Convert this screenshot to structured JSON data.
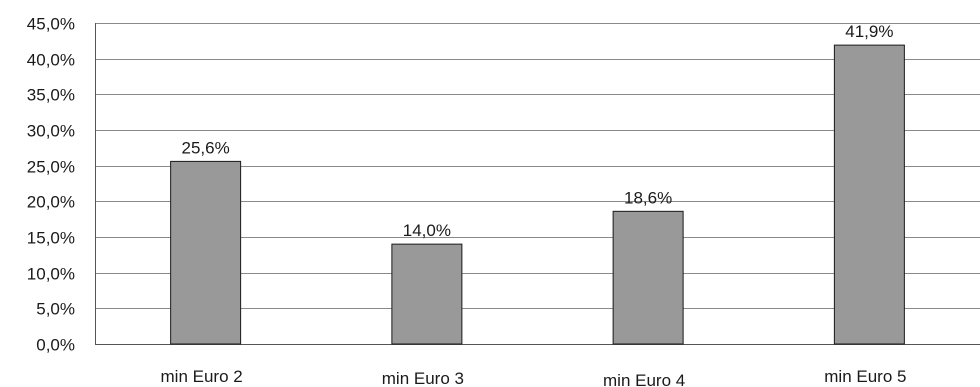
{
  "chart_data": {
    "type": "bar",
    "title": "",
    "xlabel": "",
    "ylabel": "",
    "categories": [
      "min Euro 2",
      "min Euro 3",
      "min Euro 4",
      "min Euro 5"
    ],
    "values": [
      25.6,
      14.0,
      18.6,
      41.9
    ],
    "value_labels": [
      "25,6%",
      "14,0%",
      "18,6%",
      "41,9%"
    ],
    "ylim": [
      0,
      45
    ],
    "y_ticks": [
      0,
      5,
      10,
      15,
      20,
      25,
      30,
      35,
      40,
      45
    ],
    "y_tick_labels": [
      "0,0%",
      "5,0%",
      "10,0%",
      "15,0%",
      "20,0%",
      "25,0%",
      "30,0%",
      "35,0%",
      "40,0%",
      "45,0%"
    ],
    "grid": true,
    "legend": "none",
    "colors": {
      "bar_fill": "#999999",
      "bar_stroke": "#1a1a1a",
      "grid": "#8a8a8a"
    }
  }
}
